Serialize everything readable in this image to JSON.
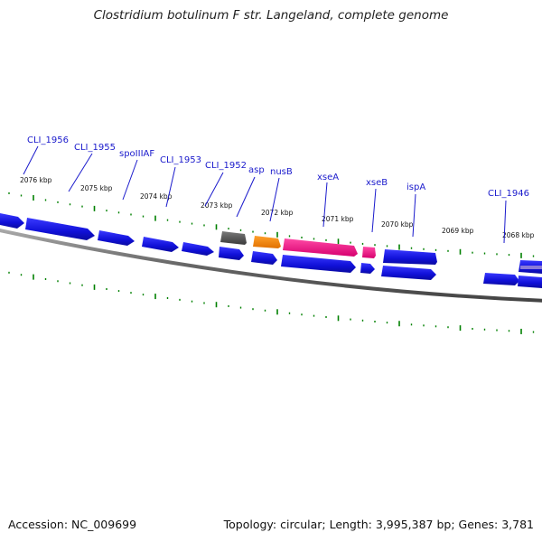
{
  "title": "Clostridium botulinum F str. Langeland, complete genome",
  "footer": {
    "accession": "Accession: NC_009699",
    "summary": "Topology: circular; Length: 3,995,387 bp; Genes: 3,781"
  },
  "colors": {
    "forward_gene": "#1414e0",
    "reverse_gene": "#1414e0",
    "rna_gene": "#ff1a8c",
    "orange_gene": "#ff8c00",
    "gray_gene": "#555555",
    "backbone": "#777777",
    "tick": "#008000",
    "label": "#1a1acc"
  },
  "kbp_markers": [
    "2076 kbp",
    "2075 kbp",
    "2074 kbp",
    "2073 kbp",
    "2072 kbp",
    "2071 kbp",
    "2070 kbp",
    "2069 kbp",
    "2068 kbp"
  ],
  "gene_labels": [
    "CLI_1956",
    "CLI_1955",
    "spoIIIAF",
    "CLI_1953",
    "CLI_1952",
    "asp",
    "nusB",
    "xseA",
    "xseB",
    "ispA",
    "CLI_1946"
  ]
}
